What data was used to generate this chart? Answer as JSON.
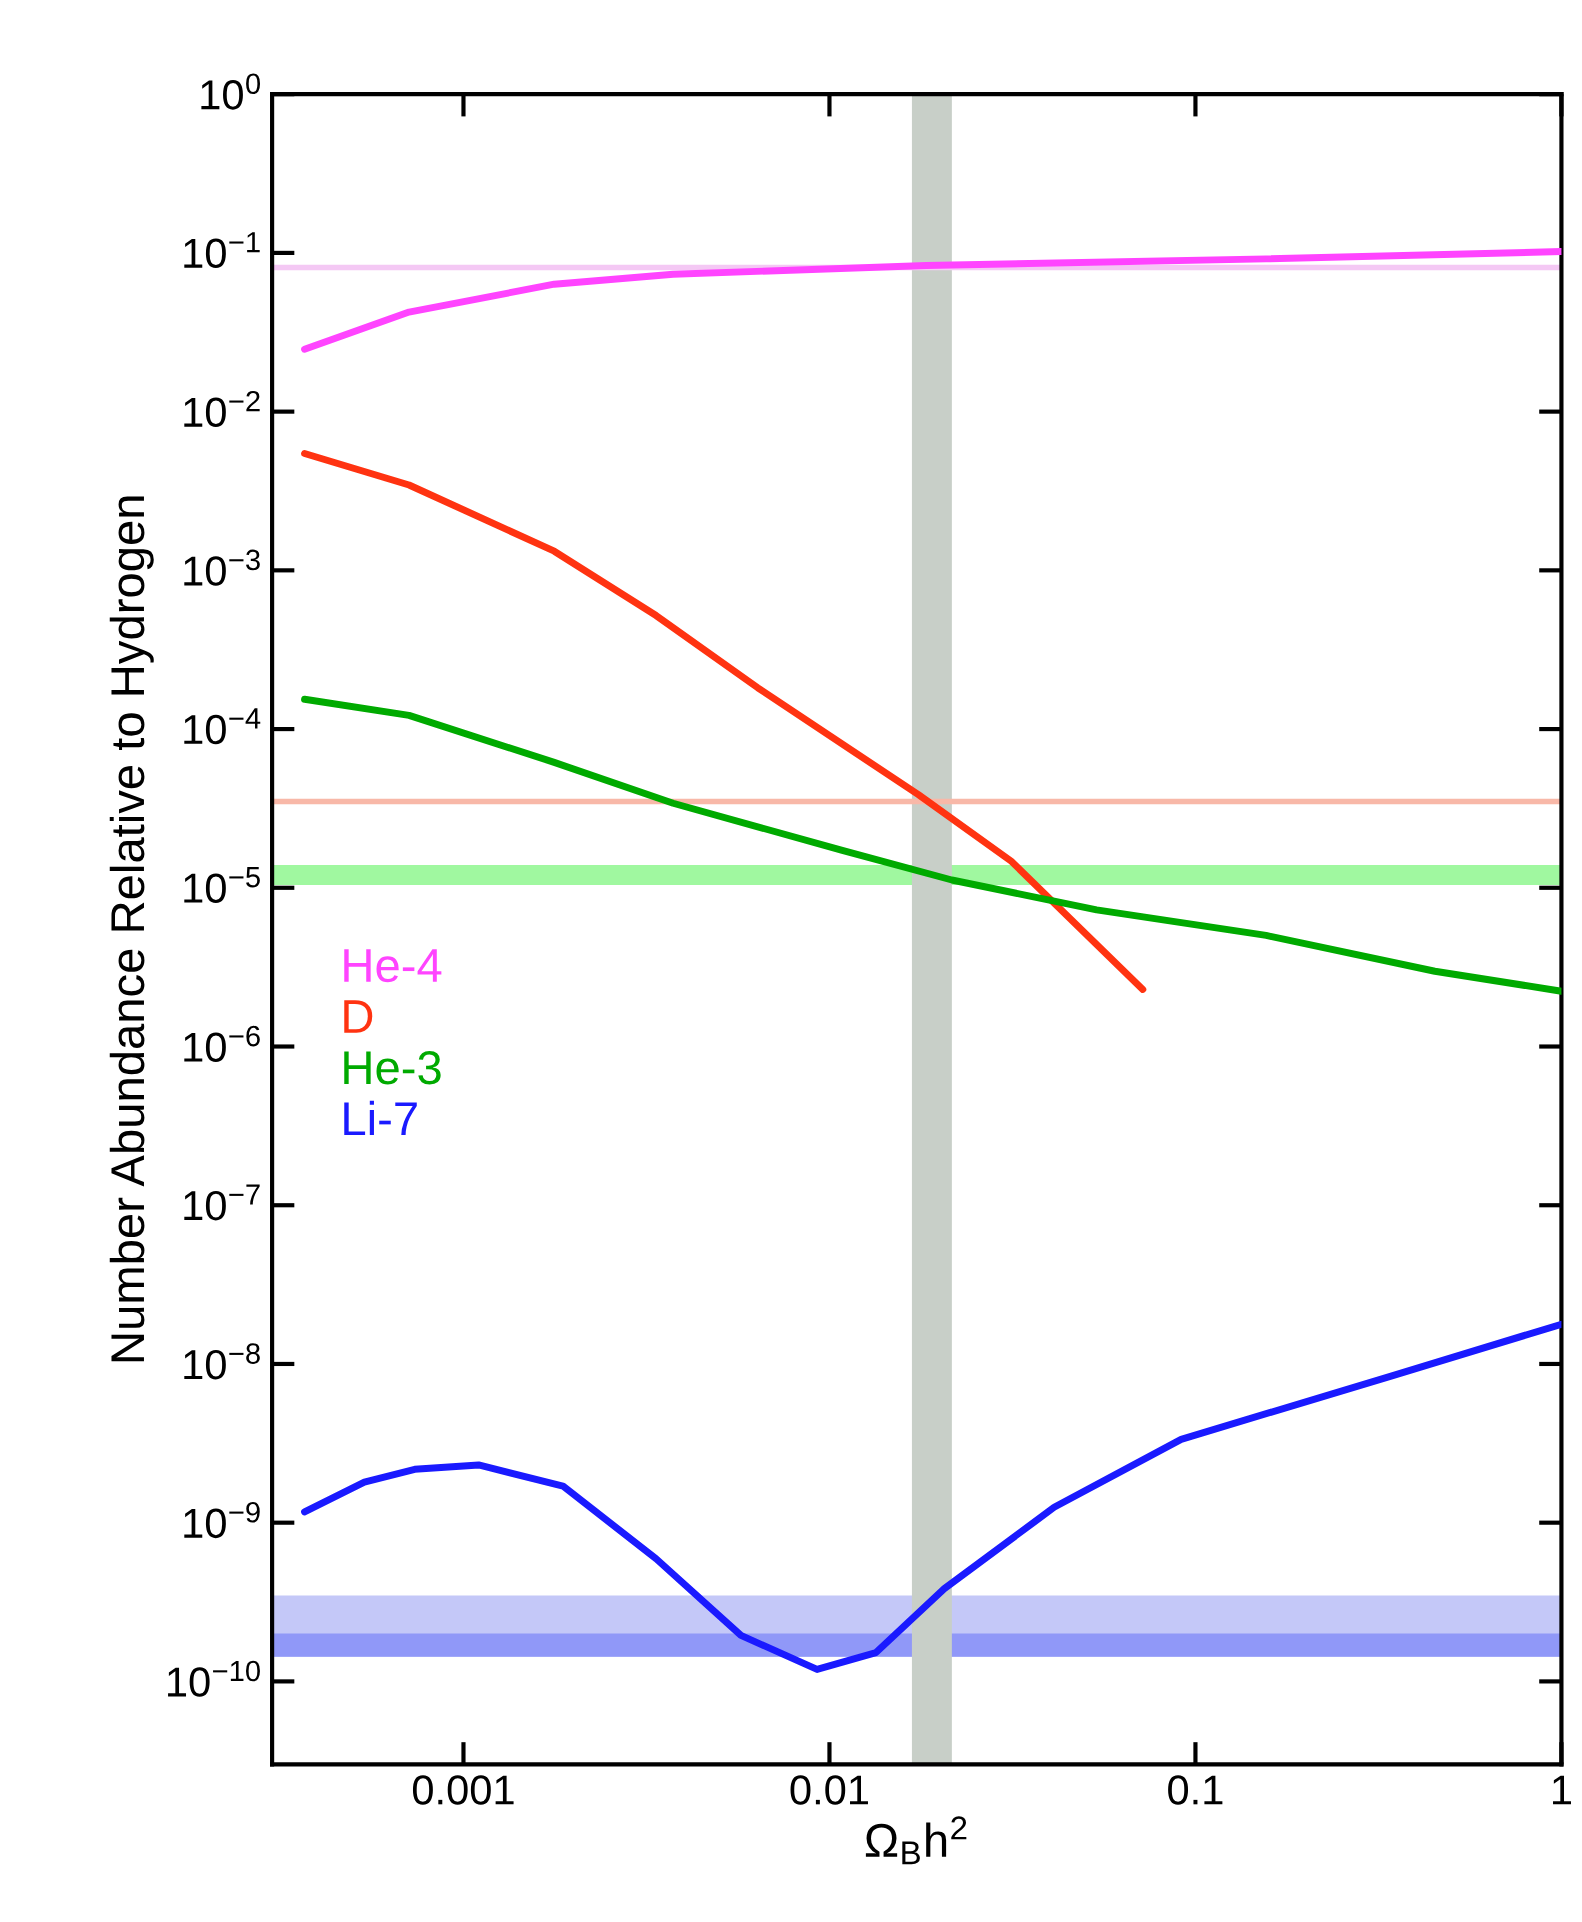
{
  "chart_data": {
    "type": "line",
    "xlabel": "Ω$_{B}$h$^{2}$",
    "ylabel": "Number Abundance Relative to Hydrogen",
    "log": "xy",
    "xlim": [
      0.0003,
      1
    ],
    "ylim": [
      3e-11,
      1
    ],
    "xticks": [
      0.001,
      0.01,
      0.1,
      1
    ],
    "yticks": [
      {
        "value": 1,
        "label": "10$^{0}$"
      },
      {
        "value": 0.1,
        "label": "10$^{−1}$"
      },
      {
        "value": 0.01,
        "label": "10$^{−2}$"
      },
      {
        "value": 0.001,
        "label": "10$^{−3}$"
      },
      {
        "value": 0.0001,
        "label": "10$^{−4}$"
      },
      {
        "value": 1e-05,
        "label": "10$^{−5}$"
      },
      {
        "value": 1e-06,
        "label": "10$^{−6}$"
      },
      {
        "value": 1e-07,
        "label": "10$^{−7}$"
      },
      {
        "value": 1e-08,
        "label": "10$^{−8}$"
      },
      {
        "value": 1e-09,
        "label": "10$^{−9}$"
      },
      {
        "value": 1e-10,
        "label": "10$^{−10}$"
      }
    ],
    "grid": false,
    "legend": "center left",
    "series": [
      {
        "name": "He-4",
        "color": "#ff44ff",
        "x": [
          0.000368,
          0.00071,
          0.00177,
          0.00374,
          0.0184,
          0.156,
          1
        ],
        "values": [
          0.0247,
          0.0424,
          0.0635,
          0.0734,
          0.0832,
          0.0917,
          0.102
        ]
      },
      {
        "name": "D",
        "color": "#ff3311",
        "x": [
          0.000368,
          0.00071,
          0.00177,
          0.00336,
          0.00637,
          0.0175,
          0.0314,
          0.0718
        ],
        "values": [
          0.00545,
          0.00345,
          0.00132,
          0.000519,
          0.000182,
          3.86e-05,
          1.47e-05,
          2.29e-06
        ]
      },
      {
        "name": "He-3",
        "color": "#00aa00",
        "x": [
          0.000368,
          0.00071,
          0.00177,
          0.00374,
          0.01084,
          0.0216,
          0.0537,
          0.156,
          0.451,
          1
        ],
        "values": [
          0.000154,
          0.000122,
          6.17e-05,
          3.41e-05,
          1.72e-05,
          1.12e-05,
          7.26e-06,
          5.01e-06,
          2.98e-06,
          2.23e-06
        ]
      },
      {
        "name": "Li-7",
        "color": "#1a1aff",
        "x": [
          0.000368,
          0.000536,
          0.000736,
          0.0011,
          0.00187,
          0.00336,
          0.00573,
          0.00925,
          0.0134,
          0.0206,
          0.0411,
          0.0914,
          0.346,
          1
        ],
        "values": [
          1.17e-09,
          1.8e-09,
          2.17e-09,
          2.31e-09,
          1.7e-09,
          5.93e-10,
          1.95e-10,
          1.19e-10,
          1.52e-10,
          3.84e-10,
          1.25e-09,
          3.35e-09,
          8.45e-09,
          1.78e-08
        ]
      }
    ],
    "ref_lines": [
      {
        "axis": "y",
        "value": 0.081,
        "color": "#f4c8f4"
      },
      {
        "axis": "y",
        "value": 3.5e-05,
        "color": "#f8b8a8"
      }
    ],
    "bands": [
      {
        "axis": "y",
        "from": 1.04e-05,
        "to": 1.39e-05,
        "color": "#a0f8a0"
      },
      {
        "axis": "y",
        "from": 1.43e-10,
        "to": 3.48e-10,
        "color": "#c4c8f8"
      },
      {
        "axis": "y",
        "from": 1.43e-10,
        "to": 2e-10,
        "color": "#9098f8"
      },
      {
        "axis": "x",
        "from": 0.0168,
        "to": 0.0216,
        "color": "#c8cfc8"
      }
    ]
  }
}
